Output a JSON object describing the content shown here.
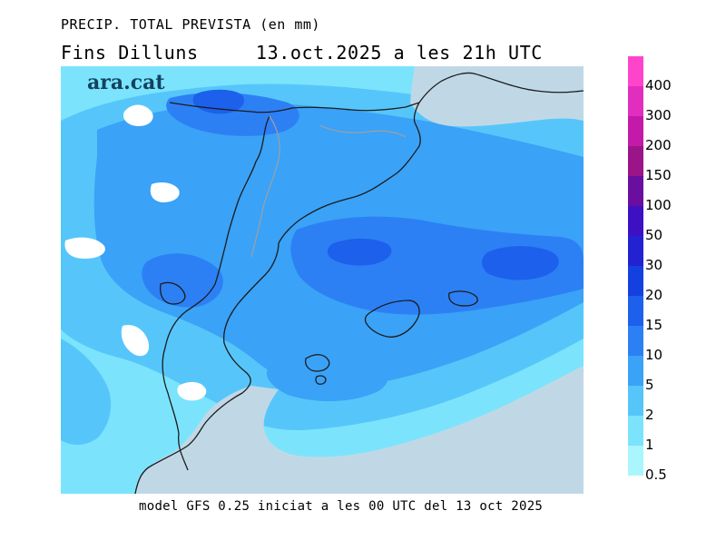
{
  "header": {
    "title": "PRECIP. TOTAL PREVISTA (en mm)",
    "valid_label": "Fins Dilluns",
    "valid_time": "13.oct.2025 a les 21h UTC"
  },
  "brand": {
    "logo_text": "ara.cat"
  },
  "footer": {
    "model_text": "model GFS 0.25 iniciat a les 00 UTC del 13 oct 2025"
  },
  "legend": {
    "items": [
      {
        "label": "400",
        "color": "#ff44cc"
      },
      {
        "label": "300",
        "color": "#e22ebe"
      },
      {
        "label": "200",
        "color": "#c41aa9"
      },
      {
        "label": "150",
        "color": "#9b1488"
      },
      {
        "label": "100",
        "color": "#6a0ea0"
      },
      {
        "label": "50",
        "color": "#3d10c4"
      },
      {
        "label": "30",
        "color": "#2222d2"
      },
      {
        "label": "20",
        "color": "#1540e0"
      },
      {
        "label": "15",
        "color": "#1c60ec"
      },
      {
        "label": "10",
        "color": "#2c80f4"
      },
      {
        "label": "5",
        "color": "#3aa2f7"
      },
      {
        "label": "2",
        "color": "#56c6fa"
      },
      {
        "label": "1",
        "color": "#7be4fc"
      },
      {
        "label": "0.5",
        "color": "#a9f6fd"
      }
    ]
  },
  "colors": {
    "sea": "#c0d8e6",
    "level_low": "#a9f6fd",
    "level_1": "#7be4fc",
    "level_2": "#56c6fa",
    "level_5": "#3aa2f7",
    "level_10": "#2c80f4",
    "level_15": "#1c60ec",
    "coast": "#1c1c1c",
    "border": "#a0a0a0"
  }
}
